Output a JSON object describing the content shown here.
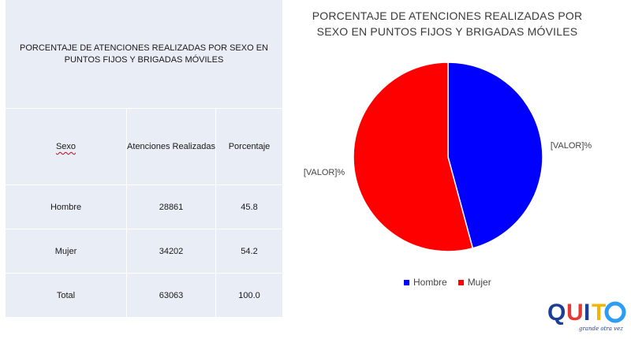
{
  "table": {
    "title": "PORCENTAJE DE ATENCIONES REALIZADAS POR SEXO EN PUNTOS FIJOS Y BRIGADAS MÓVILES",
    "headers": [
      "Sexo",
      "Atenciones Realizadas",
      "Porcentaje"
    ],
    "rows": [
      [
        "Hombre",
        "28861",
        "45.8"
      ],
      [
        "Mujer",
        "34202",
        "54.2"
      ],
      [
        "Total",
        "63063",
        "100.0"
      ]
    ]
  },
  "chart_data": {
    "type": "pie",
    "title": "PORCENTAJE DE ATENCIONES REALIZADAS POR SEXO EN PUNTOS FIJOS Y BRIGADAS MÓVILES",
    "categories": [
      "Hombre",
      "Mujer"
    ],
    "values": [
      45.8,
      54.2
    ],
    "colors": [
      "#0000ff",
      "#ff0000"
    ],
    "data_labels": [
      "[VALOR]%",
      "[VALOR]%"
    ],
    "legend": {
      "position": "bottom",
      "entries": [
        "Hombre",
        "Mujer"
      ]
    }
  },
  "logo": {
    "text": "QUITO",
    "tagline": "grande otra vez"
  }
}
